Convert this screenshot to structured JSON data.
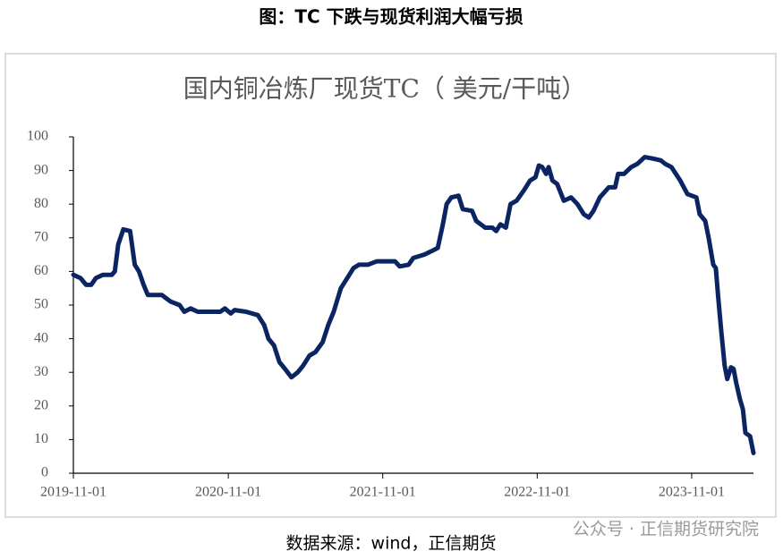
{
  "page_title": "图：TC 下跌与现货利润大幅亏损",
  "source": "数据来源：wind，正信期货",
  "watermark": "公众号 · 正信期货研究院",
  "chart_data": {
    "type": "line",
    "title": "国内铜冶炼厂现货TC（ 美元/干吨）",
    "x": [
      "2019-11-01",
      "2019-11-18",
      "2019-12-01",
      "2019-12-13",
      "2019-12-24",
      "2020-01-10",
      "2020-01-31",
      "2020-02-07",
      "2020-02-15",
      "2020-02-27",
      "2020-03-14",
      "2020-03-25",
      "2020-04-04",
      "2020-04-15",
      "2020-04-25",
      "2020-05-28",
      "2020-06-18",
      "2020-07-09",
      "2020-07-20",
      "2020-08-04",
      "2020-08-21",
      "2020-10-13",
      "2020-10-24",
      "2020-11-07",
      "2020-11-16",
      "2020-12-13",
      "2021-01-10",
      "2021-01-25",
      "2021-02-04",
      "2021-02-17",
      "2021-03-02",
      "2021-03-15",
      "2021-03-30",
      "2021-04-14",
      "2021-04-27",
      "2021-05-12",
      "2021-05-26",
      "2021-06-12",
      "2021-06-25",
      "2021-07-08",
      "2021-07-25",
      "2021-08-09",
      "2021-08-24",
      "2021-09-06",
      "2021-09-27",
      "2021-10-18",
      "2021-11-30",
      "2021-12-11",
      "2022-01-01",
      "2022-01-12",
      "2022-02-07",
      "2022-02-24",
      "2022-03-11",
      "2022-03-23",
      "2022-04-01",
      "2022-04-12",
      "2022-04-29",
      "2022-05-09",
      "2022-05-31",
      "2022-06-10",
      "2022-07-01",
      "2022-07-18",
      "2022-07-27",
      "2022-08-06",
      "2022-08-19",
      "2022-08-30",
      "2022-09-13",
      "2022-09-30",
      "2022-10-15",
      "2022-10-28",
      "2022-11-05",
      "2022-11-13",
      "2022-11-22",
      "2022-11-28",
      "2022-12-07",
      "2022-12-18",
      "2023-01-03",
      "2023-01-20",
      "2023-02-04",
      "2023-02-19",
      "2023-03-03",
      "2023-03-14",
      "2023-03-29",
      "2023-04-19",
      "2023-05-04",
      "2023-05-11",
      "2023-05-25",
      "2023-06-11",
      "2023-06-26",
      "2023-07-13",
      "2023-08-03",
      "2023-08-20",
      "2023-08-30",
      "2023-09-14",
      "2023-10-05",
      "2023-10-22",
      "2023-11-12",
      "2023-11-20",
      "2023-12-03",
      "2023-12-11",
      "2023-12-22",
      "2023-12-28",
      "2024-01-03",
      "2024-01-10",
      "2024-01-18",
      "2024-01-24",
      "2024-02-02",
      "2024-02-08",
      "2024-02-14",
      "2024-02-23",
      "2024-03-01",
      "2024-03-07",
      "2024-03-18",
      "2024-03-26"
    ],
    "series": [
      {
        "name": "国内铜冶炼厂现货TC",
        "color": "#0b2563",
        "values": [
          59,
          58,
          56,
          56,
          58,
          59,
          59,
          60,
          68,
          72.5,
          72,
          62,
          60,
          56,
          53,
          53,
          51,
          50,
          48,
          49,
          48,
          48,
          49,
          47.5,
          48.5,
          48,
          47,
          44,
          40,
          38,
          33,
          31,
          28.5,
          30,
          32,
          35,
          36,
          39,
          44,
          48,
          55,
          58,
          61,
          62,
          62,
          63,
          63,
          61.5,
          62,
          64,
          65,
          66,
          67,
          74,
          80,
          82,
          82.5,
          78.5,
          78,
          75,
          73,
          73,
          72,
          74,
          73,
          80,
          81,
          84,
          87,
          88,
          91.5,
          91,
          89,
          91,
          87,
          86,
          81,
          82,
          80,
          77,
          76,
          78,
          82,
          85,
          85,
          89,
          89,
          91,
          92,
          94,
          93.5,
          93,
          92,
          91,
          87,
          83,
          82,
          77,
          75,
          70,
          62,
          61,
          52,
          42,
          32,
          28,
          31.5,
          31,
          27,
          22,
          19,
          12,
          11,
          6
        ]
      }
    ],
    "xlim": [
      "2019-11-01",
      "2024-03-26"
    ],
    "xticks": [
      "2019-11-01",
      "2020-11-01",
      "2021-11-01",
      "2022-11-01",
      "2023-11-01"
    ],
    "ylim": [
      0,
      100
    ],
    "yticks": [
      0,
      10,
      20,
      30,
      40,
      50,
      60,
      70,
      80,
      90,
      100
    ],
    "grid": false
  }
}
